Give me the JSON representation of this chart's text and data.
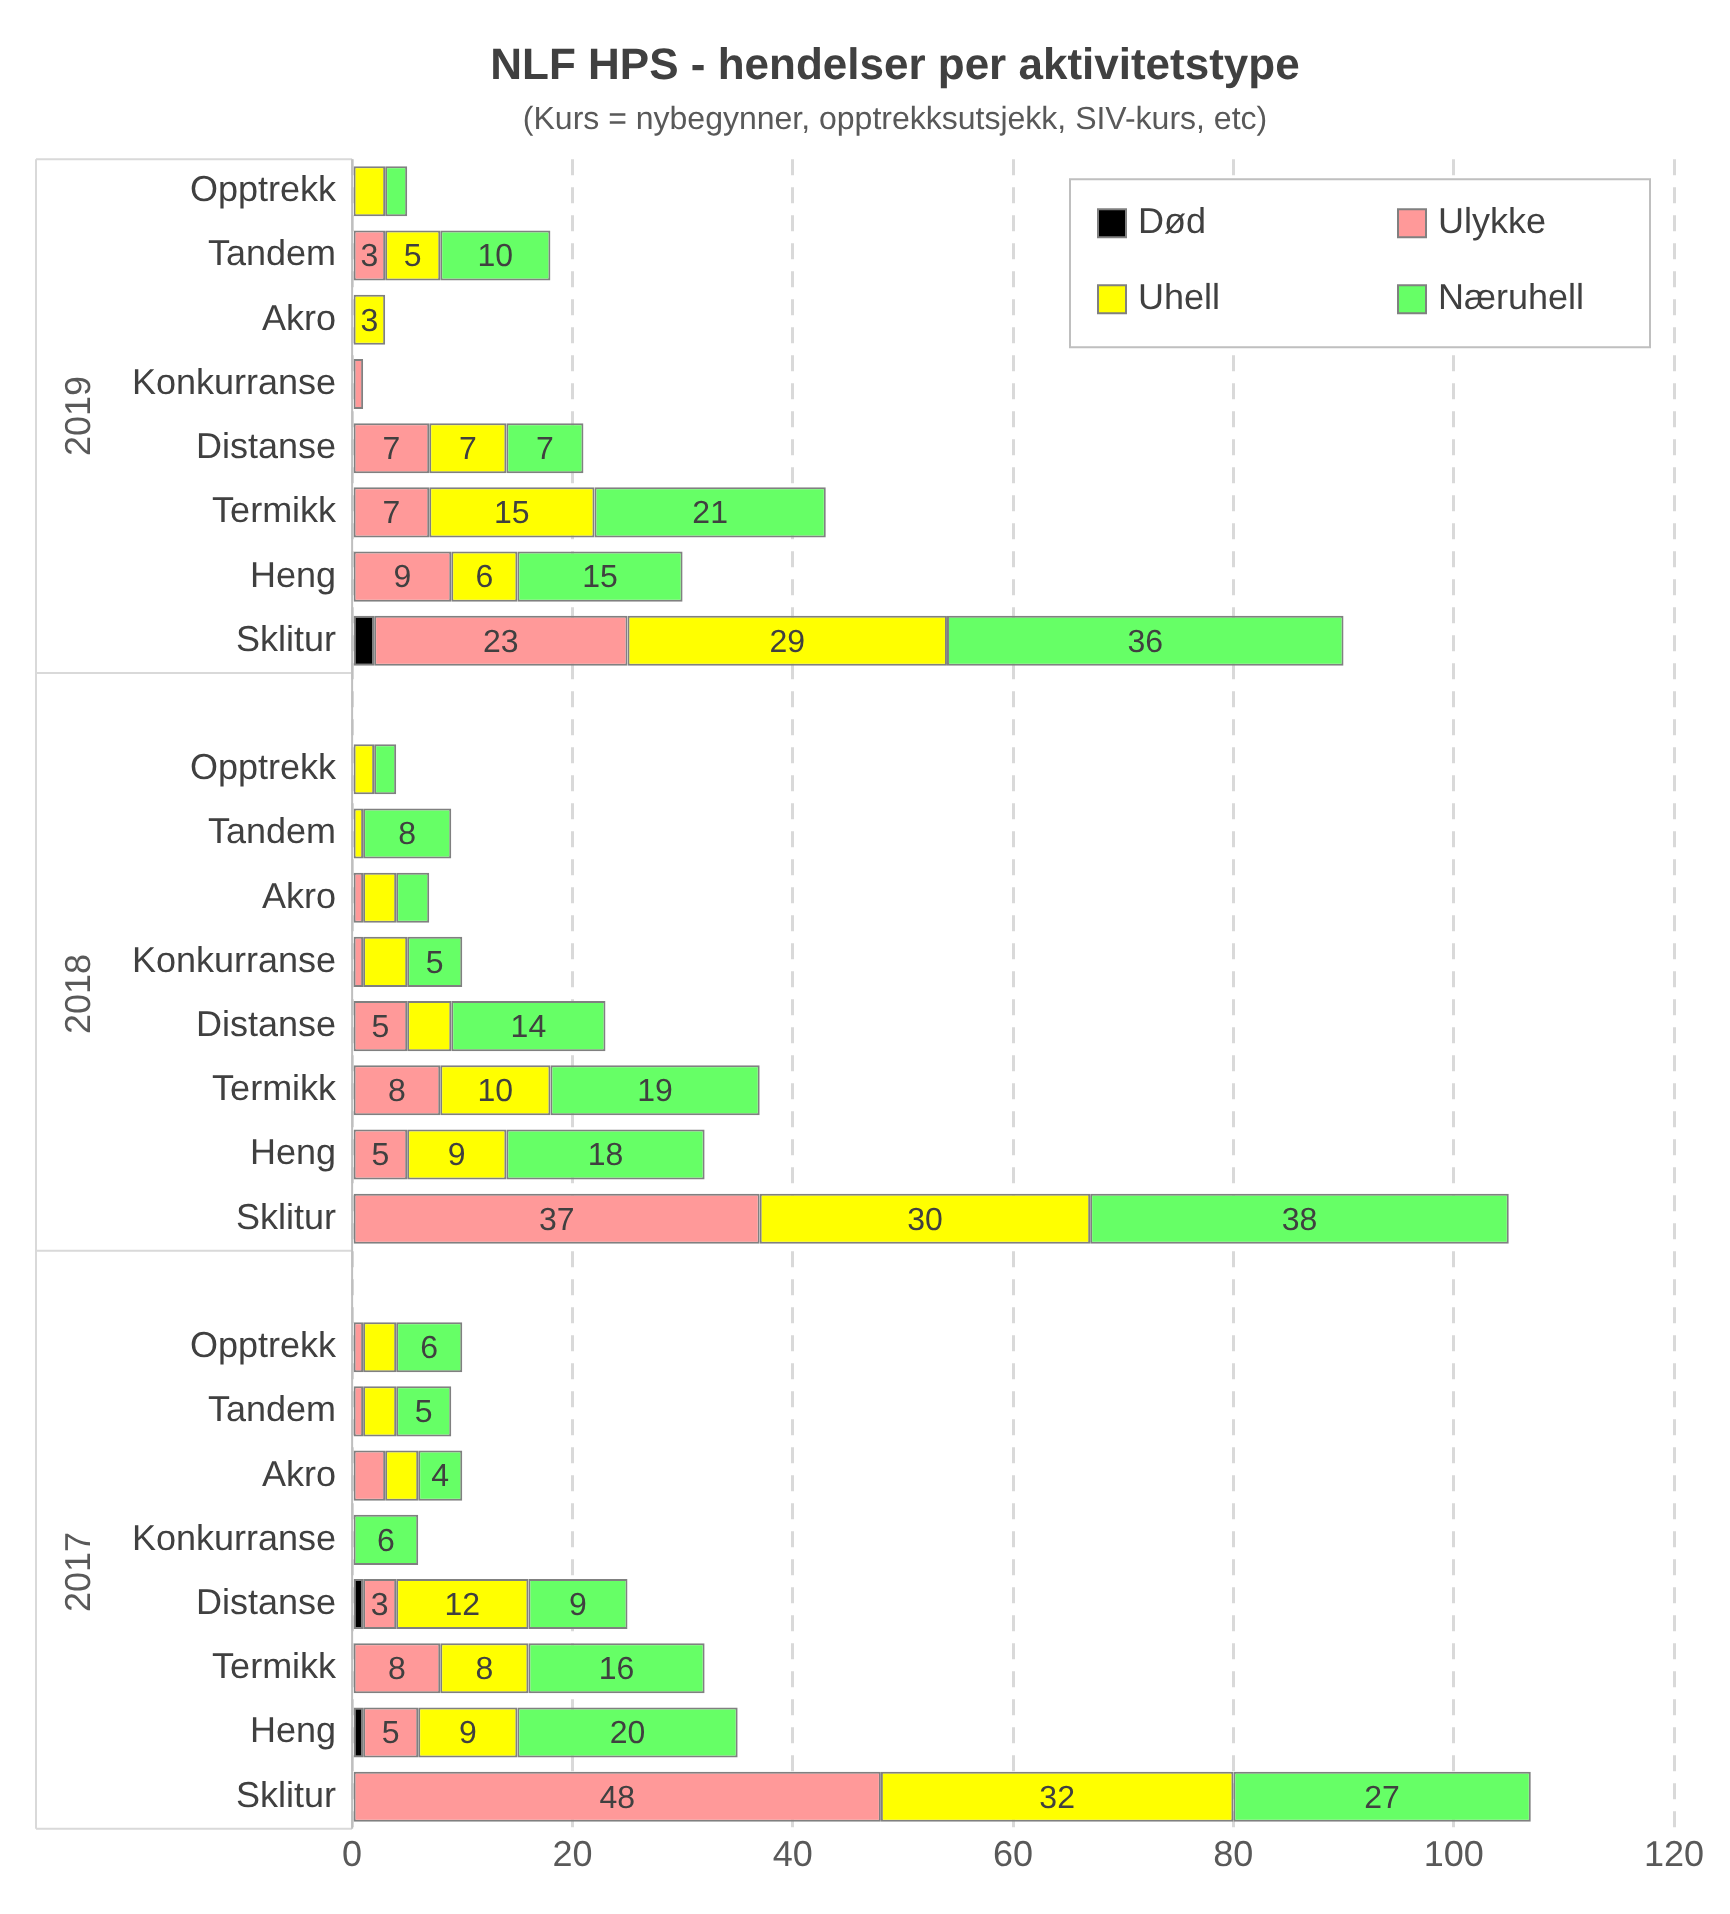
{
  "chart_data": {
    "type": "bar",
    "orientation": "horizontal",
    "stacked": true,
    "title": "NLF HPS - hendelser per aktivitetstype",
    "subtitle": "(Kurs = nybegynner, opptrekksutsjekk, SIV-kurs, etc)",
    "categories": [
      "Opptrekk",
      "Tandem",
      "Akro",
      "Konkurranse",
      "Distanse",
      "Termikk",
      "Heng",
      "Sklitur",
      null,
      "Opptrekk",
      "Tandem",
      "Akro",
      "Konkurranse",
      "Distanse",
      "Termikk",
      "Heng",
      "Sklitur",
      null,
      "Opptrekk",
      "Tandem",
      "Akro",
      "Konkurranse",
      "Distanse",
      "Termikk",
      "Heng",
      "Sklitur"
    ],
    "annotations": [
      "2019",
      "2018",
      "2017"
    ],
    "series": [
      {
        "name": "Død",
        "color": "#000000",
        "values": [
          0,
          0,
          0,
          0,
          0,
          0,
          0,
          2,
          null,
          0,
          0,
          0,
          0,
          0,
          0,
          0,
          0,
          null,
          0,
          0,
          0,
          0,
          1,
          0,
          1,
          0
        ],
        "value_labels": [
          null,
          null,
          null,
          null,
          null,
          null,
          null,
          null,
          null,
          null,
          null,
          null,
          null,
          null,
          null,
          null,
          null,
          null,
          null,
          null,
          null,
          null,
          null,
          null,
          null,
          null
        ]
      },
      {
        "name": "Ulykke",
        "color": "#ff9999",
        "values": [
          0,
          3,
          0,
          1,
          7,
          7,
          9,
          23,
          null,
          0,
          0,
          1,
          1,
          5,
          8,
          5,
          37,
          null,
          1,
          1,
          3,
          0,
          3,
          8,
          5,
          48
        ],
        "value_labels": [
          null,
          "3",
          null,
          null,
          "7",
          "7",
          "9",
          "23",
          null,
          null,
          null,
          null,
          null,
          "5",
          "8",
          "5",
          "37",
          null,
          null,
          null,
          null,
          null,
          "3",
          "8",
          "5",
          "48"
        ]
      },
      {
        "name": "Uhell",
        "color": "#ffff00",
        "values": [
          3,
          5,
          3,
          0,
          7,
          15,
          6,
          29,
          null,
          2,
          1,
          3,
          4,
          4,
          10,
          9,
          30,
          null,
          3,
          3,
          3,
          0,
          12,
          8,
          9,
          32
        ],
        "value_labels": [
          null,
          "5",
          "3",
          null,
          "7",
          "15",
          "6",
          "29",
          null,
          null,
          null,
          null,
          null,
          null,
          "10",
          "9",
          "30",
          null,
          null,
          null,
          null,
          null,
          "12",
          "8",
          "9",
          "32"
        ]
      },
      {
        "name": "Næruhell",
        "color": "#66ff66",
        "values": [
          2,
          10,
          0,
          0,
          7,
          21,
          15,
          36,
          null,
          2,
          8,
          3,
          5,
          14,
          19,
          18,
          38,
          null,
          6,
          5,
          4,
          6,
          9,
          16,
          20,
          27
        ],
        "value_labels": [
          null,
          "10",
          null,
          null,
          "7",
          "21",
          "15",
          "36",
          null,
          null,
          "8",
          null,
          "5",
          "14",
          "19",
          "18",
          "38",
          null,
          "6",
          "5",
          "4",
          "6",
          "9",
          "16",
          "20",
          "27"
        ]
      }
    ],
    "xlim": [
      0,
      120
    ],
    "xticks": [
      0,
      20,
      40,
      60,
      80,
      100,
      120
    ],
    "grid": "x",
    "legend": "top right"
  }
}
